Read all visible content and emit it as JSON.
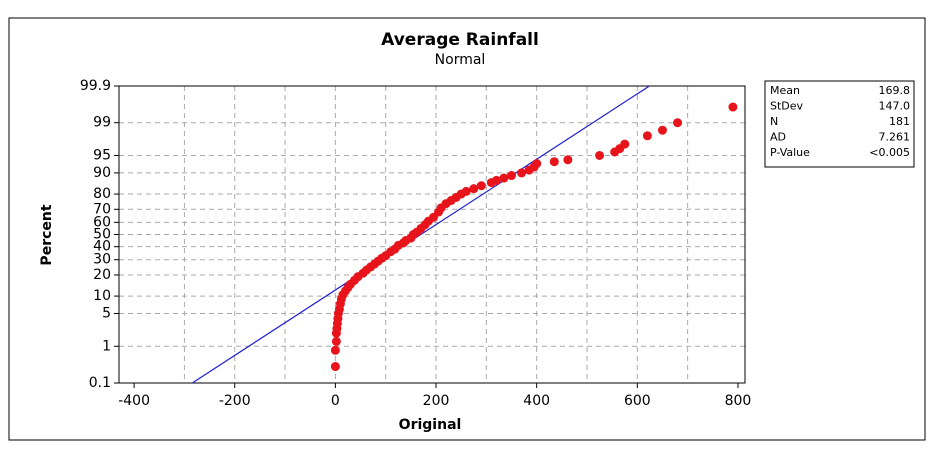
{
  "chart_data": {
    "type": "probability",
    "title": "Average Rainfall",
    "subtitle": "Normal",
    "x_label": "Original",
    "y_label": "Percent",
    "xlim": [
      -430,
      814
    ],
    "xticks": [
      -400,
      -200,
      0,
      200,
      400,
      600,
      800
    ],
    "xgrid": [
      -300,
      -200,
      -100,
      0,
      100,
      200,
      300,
      400,
      500,
      600,
      700
    ],
    "ylim": [
      0.1,
      99.9
    ],
    "yscale": "probability",
    "yticks": [
      0.1,
      1,
      5,
      10,
      20,
      30,
      40,
      50,
      60,
      70,
      80,
      90,
      95,
      99,
      99.9
    ],
    "ygrid": [
      1,
      5,
      10,
      20,
      30,
      40,
      50,
      60,
      70,
      80,
      90,
      95,
      99
    ],
    "grid": true,
    "points": {
      "color": "#e8141b",
      "x": [
        0,
        0,
        2,
        2,
        3,
        4,
        5,
        6,
        8,
        10,
        12,
        15,
        20,
        25,
        30,
        38,
        45,
        55,
        62,
        70,
        78,
        85,
        92,
        100,
        110,
        118,
        125,
        135,
        140,
        150,
        155,
        162,
        170,
        178,
        185,
        195,
        205,
        210,
        220,
        230,
        240,
        250,
        260,
        275,
        290,
        310,
        320,
        335,
        350,
        370,
        385,
        395,
        400,
        435,
        462,
        525,
        555,
        565,
        575,
        620,
        650,
        680,
        790
      ],
      "values": [
        0.3,
        0.8,
        1.3,
        2,
        2.5,
        3.2,
        4,
        5,
        6,
        7.5,
        9,
        10.5,
        12,
        13.5,
        15,
        17,
        19,
        21,
        23,
        25,
        27,
        29,
        31,
        33,
        36,
        38,
        41,
        43,
        45,
        47,
        50,
        52,
        55,
        58,
        61,
        64,
        68,
        71,
        74,
        76,
        78,
        80,
        81.5,
        83,
        84.5,
        86,
        87,
        88,
        89,
        90,
        91,
        92,
        93,
        93.5,
        94,
        95,
        95.7,
        96.3,
        97,
        98,
        98.5,
        99,
        99.6
      ]
    },
    "fit_line": {
      "color": "#2020d0",
      "x": [
        -284.4,
        624.0
      ],
      "values": [
        0.1,
        99.9
      ]
    },
    "stats": [
      {
        "label": "Mean",
        "value": "169.8"
      },
      {
        "label": "StDev",
        "value": "147.0"
      },
      {
        "label": "N",
        "value": "181"
      },
      {
        "label": "AD",
        "value": "7.261"
      },
      {
        "label": "P-Value",
        "value": "<0.005"
      }
    ]
  }
}
